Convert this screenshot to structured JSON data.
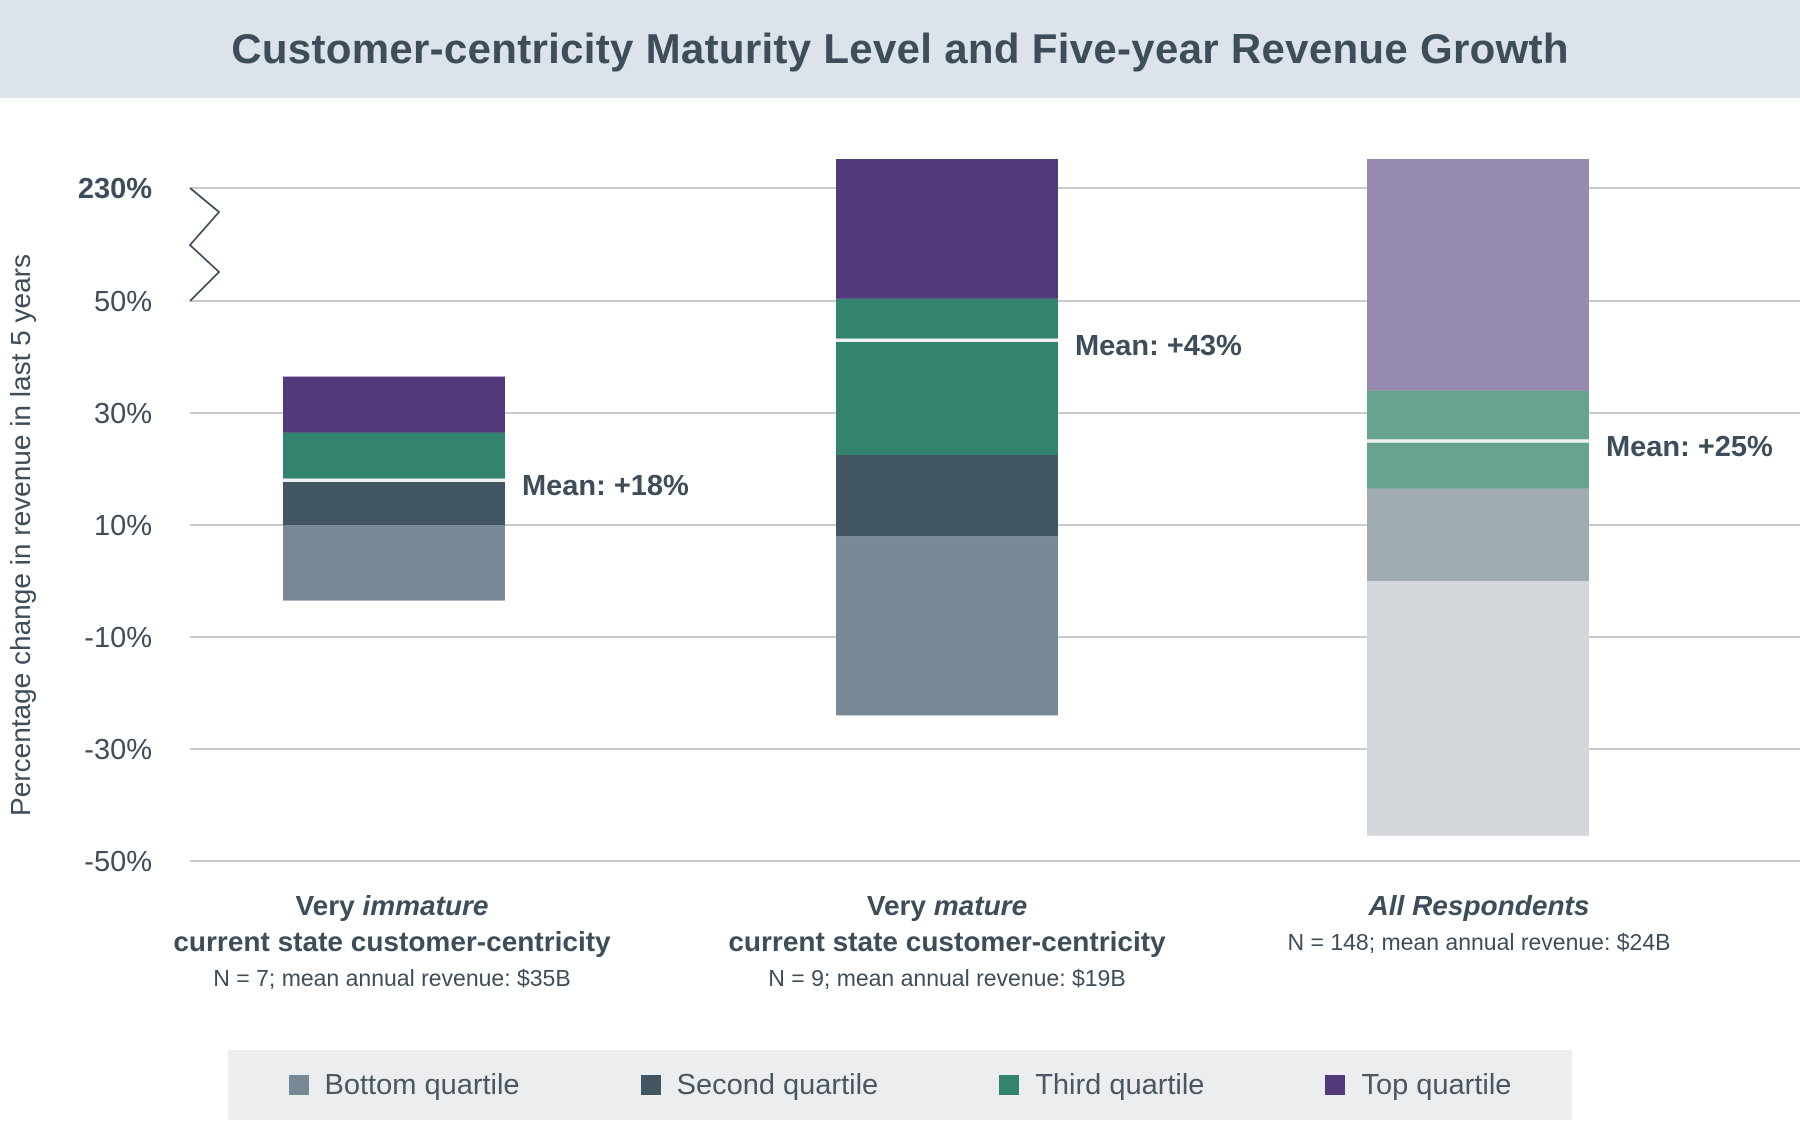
{
  "title": "Customer-centricity Maturity Level and Five-year Revenue Growth",
  "chart_data": {
    "type": "bar",
    "stacked": true,
    "ylabel": "Percentage change in revenue in last 5 years",
    "y_axis_break": {
      "below": 50,
      "above_label": "230%"
    },
    "yticks": [
      "230%",
      "50%",
      "30%",
      "10%",
      "-10%",
      "-30%",
      "-50%"
    ],
    "ylim": [
      -50,
      230
    ],
    "grid": true,
    "categories": [
      {
        "line1_a": "Very ",
        "line1_em": "immature",
        "line2": "current state customer-centricity",
        "line3": "N = 7; mean annual revenue: $35B"
      },
      {
        "line1_a": "Very ",
        "line1_em": "mature",
        "line2": "current state customer-centricity",
        "line3": "N = 9; mean annual revenue: $19B"
      },
      {
        "line1_a": "",
        "line1_em": "All Respondents",
        "line2": "",
        "line3": "N = 148; mean annual revenue: $24B"
      }
    ],
    "quartile_ranges": [
      {
        "min": -3.5,
        "q1": 10,
        "median": 18,
        "q3": 26.5,
        "max": 36.5
      },
      {
        "min": -24,
        "q1": 8,
        "median": 22.5,
        "q3": 53.5,
        "max": 230
      },
      {
        "min": -45.5,
        "q1": 0,
        "median": 16.5,
        "q3": 34,
        "max": 230
      }
    ],
    "means": [
      {
        "value": 18,
        "label": "Mean: +18%"
      },
      {
        "value": 43,
        "label": "Mean: +43%"
      },
      {
        "value": 25,
        "label": "Mean: +25%"
      }
    ],
    "series": [
      {
        "name": "Bottom quartile",
        "color": "#778896"
      },
      {
        "name": "Second quartile",
        "color": "#425563"
      },
      {
        "name": "Third quartile",
        "color": "#33846f"
      },
      {
        "name": "Top quartile",
        "color": "#51397a"
      }
    ],
    "faded_colors": [
      "#d3d7db",
      "#a1acb1",
      "#66a491",
      "#968aae"
    ],
    "legend_position": "bottom"
  }
}
